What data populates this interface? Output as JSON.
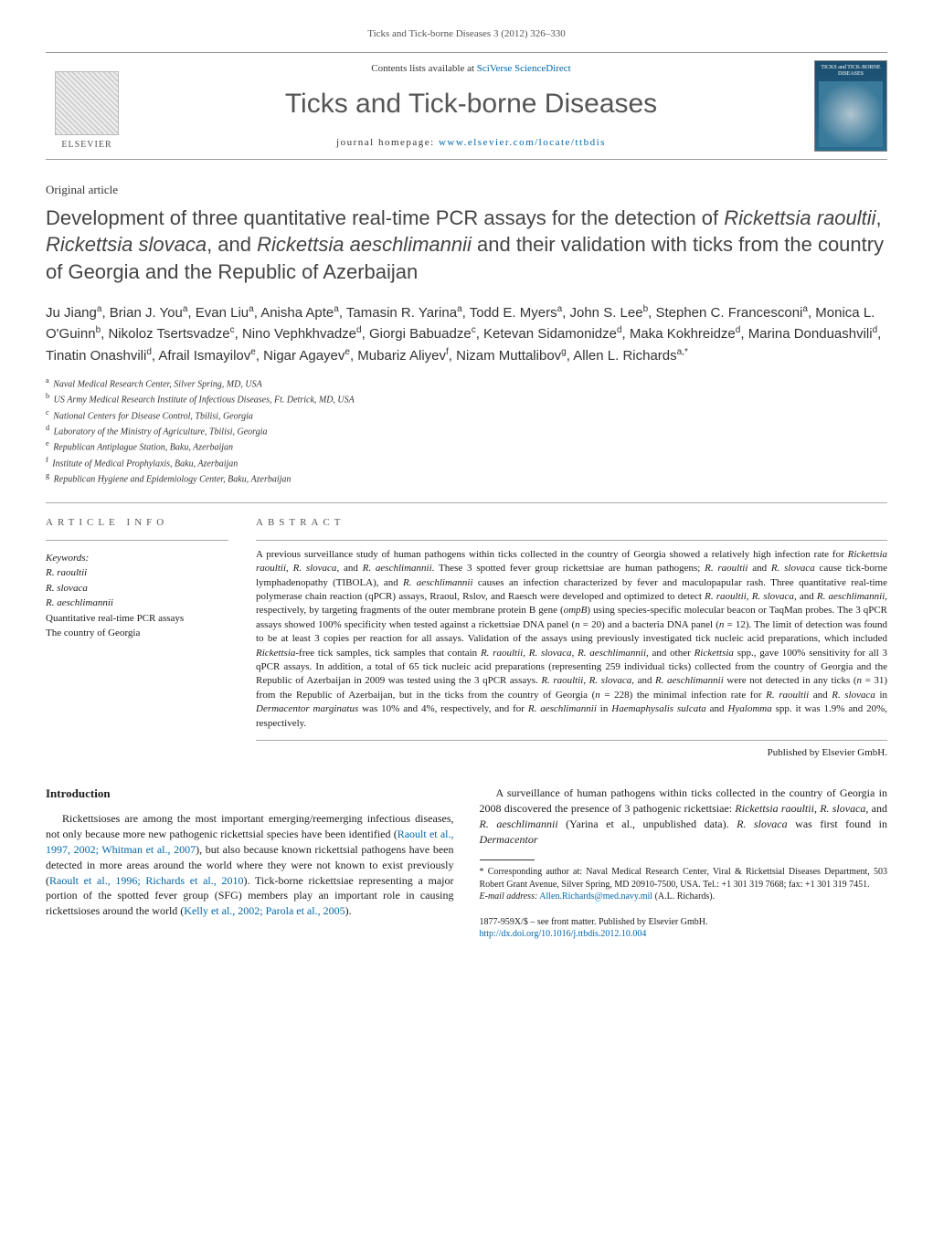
{
  "running_head": "Ticks and Tick-borne Diseases 3 (2012) 326–330",
  "masthead": {
    "publisher_word": "ELSEVIER",
    "contents_prefix": "Contents lists available at ",
    "contents_link": "SciVerse ScienceDirect",
    "journal_title": "Ticks and Tick-borne Diseases",
    "homepage_prefix": "journal homepage: ",
    "homepage_link": "www.elsevier.com/locate/ttbdis",
    "cover_text": "TICKS and TICK-BORNE DISEASES"
  },
  "article_type": "Original article",
  "title_parts": [
    {
      "t": "Development of three quantitative real-time PCR assays for the detection of ",
      "i": false
    },
    {
      "t": "Rickettsia raoultii",
      "i": true
    },
    {
      "t": ", ",
      "i": false
    },
    {
      "t": "Rickettsia slovaca",
      "i": true
    },
    {
      "t": ", and ",
      "i": false
    },
    {
      "t": "Rickettsia aeschlimannii",
      "i": true
    },
    {
      "t": " and their validation with ticks from the country of Georgia and the Republic of Azerbaijan",
      "i": false
    }
  ],
  "authors": [
    {
      "name": "Ju Jiang",
      "aff": "a"
    },
    {
      "name": "Brian J. You",
      "aff": "a"
    },
    {
      "name": "Evan Liu",
      "aff": "a"
    },
    {
      "name": "Anisha Apte",
      "aff": "a"
    },
    {
      "name": "Tamasin R. Yarina",
      "aff": "a"
    },
    {
      "name": "Todd E. Myers",
      "aff": "a"
    },
    {
      "name": "John S. Lee",
      "aff": "b"
    },
    {
      "name": "Stephen C. Francesconi",
      "aff": "a"
    },
    {
      "name": "Monica L. O'Guinn",
      "aff": "b"
    },
    {
      "name": "Nikoloz Tsertsvadze",
      "aff": "c"
    },
    {
      "name": "Nino Vephkhvadze",
      "aff": "d"
    },
    {
      "name": "Giorgi Babuadze",
      "aff": "c"
    },
    {
      "name": "Ketevan Sidamonidze",
      "aff": "d"
    },
    {
      "name": "Maka Kokhreidze",
      "aff": "d"
    },
    {
      "name": "Marina Donduashvili",
      "aff": "d"
    },
    {
      "name": "Tinatin Onashvili",
      "aff": "d"
    },
    {
      "name": "Afrail Ismayilov",
      "aff": "e"
    },
    {
      "name": "Nigar Agayev",
      "aff": "e"
    },
    {
      "name": "Mubariz Aliyev",
      "aff": "f"
    },
    {
      "name": "Nizam Muttalibov",
      "aff": "g"
    },
    {
      "name": "Allen L. Richards",
      "aff": "a,*"
    }
  ],
  "affiliations": [
    {
      "key": "a",
      "text": "Naval Medical Research Center, Silver Spring, MD, USA"
    },
    {
      "key": "b",
      "text": "US Army Medical Research Institute of Infectious Diseases, Ft. Detrick, MD, USA"
    },
    {
      "key": "c",
      "text": "National Centers for Disease Control, Tbilisi, Georgia"
    },
    {
      "key": "d",
      "text": "Laboratory of the Ministry of Agriculture, Tbilisi, Georgia"
    },
    {
      "key": "e",
      "text": "Republican Antiplague Station, Baku, Azerbaijan"
    },
    {
      "key": "f",
      "text": "Institute of Medical Prophylaxis, Baku, Azerbaijan"
    },
    {
      "key": "g",
      "text": "Republican Hygiene and Epidemiology Center, Baku, Azerbaijan"
    }
  ],
  "info": {
    "heading": "article info",
    "keywords_label": "Keywords:",
    "keywords": [
      {
        "t": "R. raoultii",
        "i": true
      },
      {
        "t": "R. slovaca",
        "i": true
      },
      {
        "t": "R. aeschlimannii",
        "i": true
      },
      {
        "t": "Quantitative real-time PCR assays",
        "i": false
      },
      {
        "t": "The country of Georgia",
        "i": false
      }
    ]
  },
  "abstract": {
    "heading": "abstract",
    "runs": [
      {
        "t": "A previous surveillance study of human pathogens within ticks collected in the country of Georgia showed a relatively high infection rate for ",
        "i": false
      },
      {
        "t": "Rickettsia raoultii",
        "i": true
      },
      {
        "t": ", ",
        "i": false
      },
      {
        "t": "R. slovaca",
        "i": true
      },
      {
        "t": ", and ",
        "i": false
      },
      {
        "t": "R. aeschlimannii",
        "i": true
      },
      {
        "t": ". These 3 spotted fever group rickettsiae are human pathogens; ",
        "i": false
      },
      {
        "t": "R. raoultii",
        "i": true
      },
      {
        "t": " and ",
        "i": false
      },
      {
        "t": "R. slovaca",
        "i": true
      },
      {
        "t": " cause tick-borne lymphadenopathy (TIBOLA), and ",
        "i": false
      },
      {
        "t": "R. aeschlimannii",
        "i": true
      },
      {
        "t": " causes an infection characterized by fever and maculopapular rash. Three quantitative real-time polymerase chain reaction (qPCR) assays, Rraoul, Rslov, and Raesch were developed and optimized to detect ",
        "i": false
      },
      {
        "t": "R. raoultii",
        "i": true
      },
      {
        "t": ", ",
        "i": false
      },
      {
        "t": "R. slovaca",
        "i": true
      },
      {
        "t": ", and ",
        "i": false
      },
      {
        "t": "R. aeschlimannii",
        "i": true
      },
      {
        "t": ", respectively, by targeting fragments of the outer membrane protein B gene (",
        "i": false
      },
      {
        "t": "ompB",
        "i": true
      },
      {
        "t": ") using species-specific molecular beacon or TaqMan probes. The 3 qPCR assays showed 100% specificity when tested against a rickettsiae DNA panel (",
        "i": false
      },
      {
        "t": "n",
        "i": true
      },
      {
        "t": " = 20) and a bacteria DNA panel (",
        "i": false
      },
      {
        "t": "n",
        "i": true
      },
      {
        "t": " = 12). The limit of detection was found to be at least 3 copies per reaction for all assays. Validation of the assays using previously investigated tick nucleic acid preparations, which included ",
        "i": false
      },
      {
        "t": "Rickettsia",
        "i": true
      },
      {
        "t": "-free tick samples, tick samples that contain ",
        "i": false
      },
      {
        "t": "R. raoultii",
        "i": true
      },
      {
        "t": ", ",
        "i": false
      },
      {
        "t": "R. slovaca",
        "i": true
      },
      {
        "t": ", ",
        "i": false
      },
      {
        "t": "R. aeschlimannii",
        "i": true
      },
      {
        "t": ", and other ",
        "i": false
      },
      {
        "t": "Rickettsia",
        "i": true
      },
      {
        "t": " spp., gave 100% sensitivity for all 3 qPCR assays. In addition, a total of 65 tick nucleic acid preparations (representing 259 individual ticks) collected from the country of Georgia and the Republic of Azerbaijan in 2009 was tested using the 3 qPCR assays. ",
        "i": false
      },
      {
        "t": "R. raoultii",
        "i": true
      },
      {
        "t": ", ",
        "i": false
      },
      {
        "t": "R. slovaca",
        "i": true
      },
      {
        "t": ", and ",
        "i": false
      },
      {
        "t": "R. aeschlimannii",
        "i": true
      },
      {
        "t": " were not detected in any ticks (",
        "i": false
      },
      {
        "t": "n",
        "i": true
      },
      {
        "t": " = 31) from the Republic of Azerbaijan, but in the ticks from the country of Georgia (",
        "i": false
      },
      {
        "t": "n",
        "i": true
      },
      {
        "t": " = 228) the minimal infection rate for ",
        "i": false
      },
      {
        "t": "R. raoultii",
        "i": true
      },
      {
        "t": " and ",
        "i": false
      },
      {
        "t": "R. slovaca",
        "i": true
      },
      {
        "t": " in ",
        "i": false
      },
      {
        "t": "Dermacentor marginatus",
        "i": true
      },
      {
        "t": " was 10% and 4%, respectively, and for ",
        "i": false
      },
      {
        "t": "R. aeschlimannii",
        "i": true
      },
      {
        "t": " in ",
        "i": false
      },
      {
        "t": "Haemaphysalis sulcata",
        "i": true
      },
      {
        "t": " and ",
        "i": false
      },
      {
        "t": "Hyalomma",
        "i": true
      },
      {
        "t": " spp. it was 1.9% and 20%, respectively.",
        "i": false
      }
    ],
    "pub_line": "Published by Elsevier GmbH."
  },
  "body": {
    "intro_heading": "Introduction",
    "p1_runs": [
      {
        "t": "Rickettsioses are among the most important emerging/reemerging infectious diseases, not only because more new pathogenic rickettsial species have been identified (",
        "i": false,
        "a": false
      },
      {
        "t": "Raoult ",
        "i": false,
        "a": true
      },
      {
        "t": "et al., 1997, 2002; Whitman et al., 2007",
        "i": false,
        "a": true
      },
      {
        "t": "), but also because known rickettsial pathogens have been detected in more areas around the world where they were not known to exist previously (",
        "i": false,
        "a": false
      },
      {
        "t": "Raoult et al., 1996; Richards et al., 2010",
        "i": false,
        "a": true
      },
      {
        "t": "). Tick-borne rickettsiae representing a major portion of the spotted fever group (SFG) members play an important role in causing rickettsioses around the world (",
        "i": false,
        "a": false
      },
      {
        "t": "Kelly et al., 2002; Parola et al., 2005",
        "i": false,
        "a": true
      },
      {
        "t": ").",
        "i": false,
        "a": false
      }
    ],
    "p2_runs": [
      {
        "t": "A surveillance of human pathogens within ticks collected in the country of Georgia in 2008 discovered the presence of 3 pathogenic rickettsiae: ",
        "i": false
      },
      {
        "t": "Rickettsia raoultii",
        "i": true
      },
      {
        "t": ", ",
        "i": false
      },
      {
        "t": "R. slovaca",
        "i": true
      },
      {
        "t": ", and ",
        "i": false
      },
      {
        "t": "R. aeschlimannii",
        "i": true
      },
      {
        "t": " (Yarina et al., unpublished data). ",
        "i": false
      },
      {
        "t": "R. slovaca",
        "i": true
      },
      {
        "t": " was first found in ",
        "i": false
      },
      {
        "t": "Dermacentor",
        "i": true
      }
    ]
  },
  "footnotes": {
    "corr_label": "* Corresponding author at: Naval Medical Research Center, Viral & Rickettsial Diseases Department, 503 Robert Grant Avenue, Silver Spring, MD 20910-7500, USA. Tel.: +1 301 319 7668; fax: +1 301 319 7451.",
    "email_label": "E-mail address:",
    "email": "Allen.Richards@med.navy.mil",
    "email_person": "(A.L. Richards)."
  },
  "bottom": {
    "issn_line": "1877-959X/$ – see front matter. Published by Elsevier GmbH.",
    "doi": "http://dx.doi.org/10.1016/j.ttbdis.2012.10.004"
  },
  "colors": {
    "link": "#0066aa",
    "heading_gray": "#555555",
    "rule": "#aaaaaa"
  }
}
